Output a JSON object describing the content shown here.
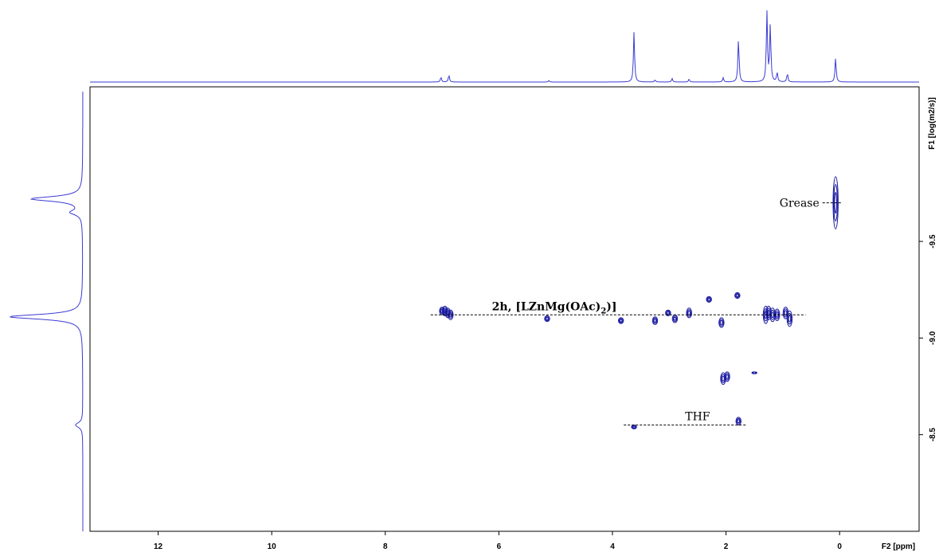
{
  "chart_data": {
    "type": "2D DOSY NMR contour",
    "xlabel": "F2 [ppm]",
    "ylabel": "F1 [log(m2/s)]",
    "xlim": [
      13.2,
      -1.4
    ],
    "ylim": [
      -10.3,
      -8.0
    ],
    "x_ticks": [
      12,
      10,
      8,
      6,
      4,
      2,
      0
    ],
    "x_tick_labels": [
      "12",
      "10",
      "8",
      "6",
      "4",
      "2",
      "0"
    ],
    "y_ticks": [
      -9.5,
      -9.0,
      -8.5
    ],
    "y_tick_labels": [
      "-9.5",
      "-9.0",
      "-8.5"
    ],
    "annotations": [
      {
        "id": "grease",
        "text": "Grease",
        "logD": -9.7,
        "x_from": 0.3,
        "x_to": -0.05
      },
      {
        "id": "complex",
        "text_main": "2h, [LZnMg(OAc)",
        "text_sub": "2",
        "text_end": ")]",
        "logD": -9.12,
        "x_from": 7.2,
        "x_to": 0.6
      },
      {
        "id": "thf",
        "text": "THF",
        "logD": -8.55,
        "x_from": 3.8,
        "x_to": 1.65
      }
    ],
    "contour_peaks": [
      {
        "ppm": 0.07,
        "logD": -9.7,
        "height": 0.27
      },
      {
        "ppm": 7.0,
        "logD": -9.14,
        "height": 0.04
      },
      {
        "ppm": 6.95,
        "logD": -9.14,
        "height": 0.05
      },
      {
        "ppm": 6.9,
        "logD": -9.13,
        "height": 0.05
      },
      {
        "ppm": 6.85,
        "logD": -9.12,
        "height": 0.05
      },
      {
        "ppm": 5.15,
        "logD": -9.1,
        "height": 0.03
      },
      {
        "ppm": 3.85,
        "logD": -9.09,
        "height": 0.03
      },
      {
        "ppm": 3.25,
        "logD": -9.09,
        "height": 0.04
      },
      {
        "ppm": 3.02,
        "logD": -9.13,
        "height": 0.03
      },
      {
        "ppm": 2.9,
        "logD": -9.1,
        "height": 0.04
      },
      {
        "ppm": 2.65,
        "logD": -9.13,
        "height": 0.05
      },
      {
        "ppm": 2.3,
        "logD": -9.2,
        "height": 0.03
      },
      {
        "ppm": 2.08,
        "logD": -9.08,
        "height": 0.05
      },
      {
        "ppm": 1.8,
        "logD": -9.22,
        "height": 0.03
      },
      {
        "ppm": 1.3,
        "logD": -9.12,
        "height": 0.09
      },
      {
        "ppm": 1.25,
        "logD": -9.13,
        "height": 0.07
      },
      {
        "ppm": 1.18,
        "logD": -9.12,
        "height": 0.07
      },
      {
        "ppm": 1.1,
        "logD": -9.12,
        "height": 0.06
      },
      {
        "ppm": 0.95,
        "logD": -9.13,
        "height": 0.06
      },
      {
        "ppm": 0.88,
        "logD": -9.1,
        "height": 0.08
      },
      {
        "ppm": 2.05,
        "logD": -8.79,
        "height": 0.06
      },
      {
        "ppm": 1.98,
        "logD": -8.8,
        "height": 0.05
      },
      {
        "ppm": 1.5,
        "logD": -8.82,
        "height": 0.01
      },
      {
        "ppm": 3.62,
        "logD": -8.54,
        "height": 0.02
      },
      {
        "ppm": 1.78,
        "logD": -8.57,
        "height": 0.04
      }
    ],
    "f2_projection_peaks": [
      {
        "ppm": 7.02,
        "h": 0.07
      },
      {
        "ppm": 6.88,
        "h": 0.1
      },
      {
        "ppm": 5.12,
        "h": 0.02
      },
      {
        "ppm": 3.62,
        "h": 0.7
      },
      {
        "ppm": 3.25,
        "h": 0.03
      },
      {
        "ppm": 2.95,
        "h": 0.05
      },
      {
        "ppm": 2.65,
        "h": 0.04
      },
      {
        "ppm": 2.05,
        "h": 0.06
      },
      {
        "ppm": 1.78,
        "h": 0.62
      },
      {
        "ppm": 1.28,
        "h": 0.98
      },
      {
        "ppm": 1.22,
        "h": 0.8
      },
      {
        "ppm": 1.1,
        "h": 0.13
      },
      {
        "ppm": 0.92,
        "h": 0.12
      },
      {
        "ppm": 0.07,
        "h": 0.34
      }
    ],
    "f1_projection_peaks": [
      {
        "logD": -9.72,
        "h": 0.7
      },
      {
        "logD": -9.65,
        "h": 0.15
      },
      {
        "logD": -9.11,
        "h": 1.0
      },
      {
        "logD": -8.55,
        "h": 0.1
      }
    ],
    "colors": {
      "contour": "#1a1aa0",
      "projection": "#3b3bd4",
      "frame": "#000000"
    }
  }
}
